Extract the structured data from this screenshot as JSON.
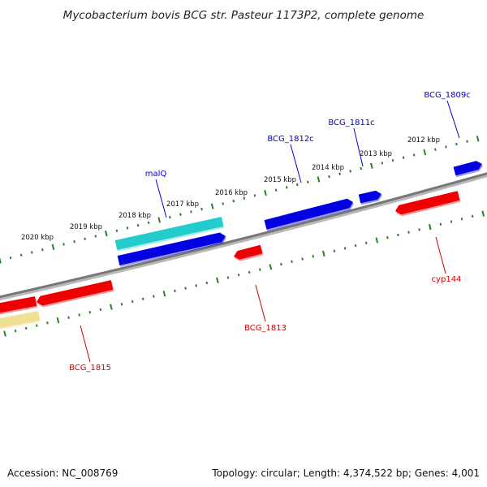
{
  "title": "Mycobacterium bovis BCG str. Pasteur 1173P2, complete genome",
  "footer": {
    "accession": "Accession: NC_008769",
    "summary": "Topology: circular; Length: 4,374,522 bp; Genes: 4,001"
  },
  "colors": {
    "background": "#ffffff",
    "backbone": "#808080",
    "ticks": "#2e7d2e",
    "forward_gene": "#0000e0",
    "reverse_gene": "#ee0000",
    "forward_label": "#0000cc",
    "reverse_label": "#cc0000",
    "rna_cyan": "#22cccc",
    "partial_pale": "#f0e094"
  },
  "ticks": [
    {
      "label": "2012 kbp"
    },
    {
      "label": "2013 kbp"
    },
    {
      "label": "2014 kbp"
    },
    {
      "label": "2015 kbp"
    },
    {
      "label": "2016 kbp"
    },
    {
      "label": "2017 kbp"
    },
    {
      "label": "2018 kbp"
    },
    {
      "label": "2019 kbp"
    },
    {
      "label": "2020 kbp"
    }
  ],
  "gene_labels": [
    {
      "text": "BCG_1809c",
      "strand": "forward"
    },
    {
      "text": "BCG_1811c",
      "strand": "forward"
    },
    {
      "text": "BCG_1812c",
      "strand": "forward"
    },
    {
      "text": "malQ",
      "strand": "forward"
    },
    {
      "text": "cyp144",
      "strand": "reverse"
    },
    {
      "text": "BCG_1813",
      "strand": "reverse"
    },
    {
      "text": "BCG_1815",
      "strand": "reverse"
    }
  ]
}
